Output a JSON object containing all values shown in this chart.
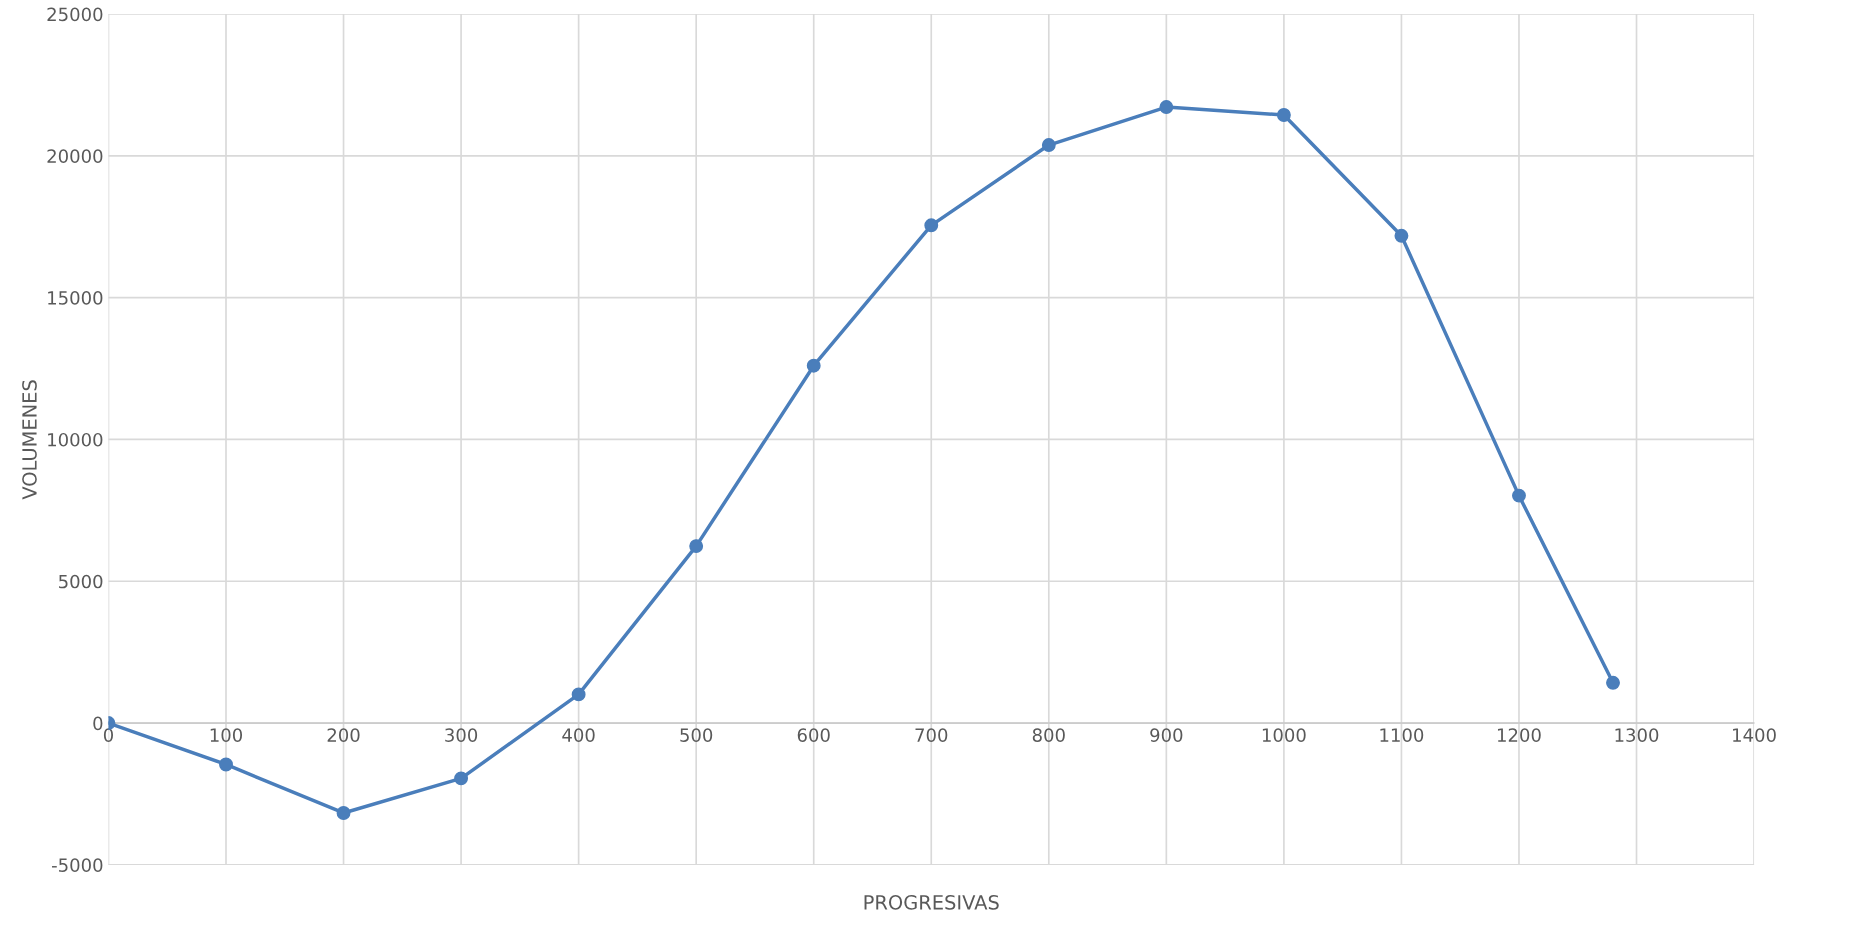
{
  "chart_data": {
    "type": "line",
    "xlabel": "PROGRESIVAS",
    "ylabel": "VOLUMENES",
    "x": [
      0,
      100,
      200,
      300,
      400,
      500,
      600,
      700,
      800,
      900,
      1000,
      1100,
      1200,
      1280
    ],
    "series": [
      {
        "color": "#4a7ebb",
        "values": [
          0,
          -1460,
          -3170,
          -1950,
          1010,
          6240,
          12600,
          17550,
          20380,
          21720,
          21440,
          17180,
          8020,
          1420
        ]
      }
    ],
    "xlim": [
      0,
      1400
    ],
    "xticks": [
      0,
      100,
      200,
      300,
      400,
      500,
      600,
      700,
      800,
      900,
      1000,
      1100,
      1200,
      1300,
      1400
    ],
    "ylim": [
      -5000,
      25000
    ],
    "yticks": [
      -5000,
      0,
      5000,
      10000,
      15000,
      20000,
      25000
    ],
    "grid": true,
    "marker": "circle",
    "line_style": "solid"
  }
}
